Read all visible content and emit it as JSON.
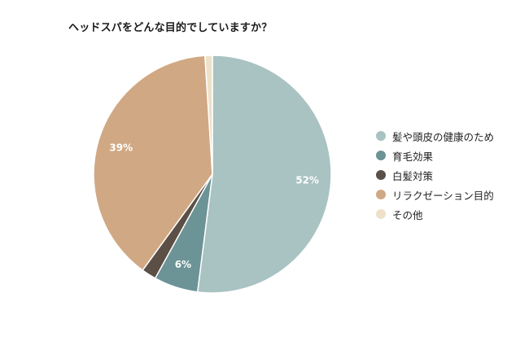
{
  "chart_data": {
    "type": "pie",
    "title": "ヘッドスパをどんな目的でしていますか？",
    "slices": [
      {
        "label": "髪や頭皮の健康のため",
        "value": 52,
        "value_label": "52%",
        "color": "#a9c2c2"
      },
      {
        "label": "育毛効果",
        "value": 6,
        "value_label": "6%",
        "color": "#6c9396"
      },
      {
        "label": "白髪対策",
        "value": 2,
        "value_label": "",
        "color": "#5b4f46"
      },
      {
        "label": "リラクゼーション目的",
        "value": 39,
        "value_label": "39%",
        "color": "#d0a883"
      },
      {
        "label": "その他",
        "value": 1,
        "value_label": "",
        "color": "#efe1c9"
      }
    ],
    "legend_position": "right"
  }
}
